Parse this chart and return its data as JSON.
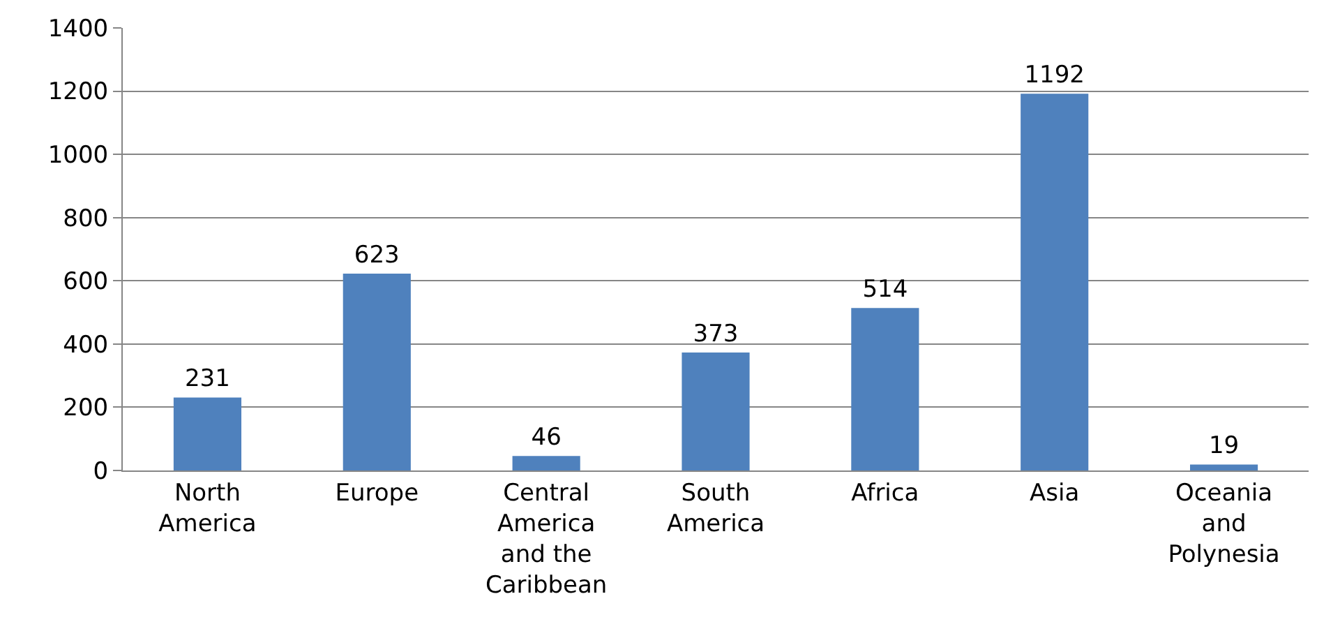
{
  "chart_data": {
    "type": "bar",
    "categories": [
      "North America",
      "Europe",
      "Central America and the Caribbean",
      "South America",
      "Africa",
      "Asia",
      "Oceania and Polynesia"
    ],
    "values": [
      231,
      623,
      46,
      373,
      514,
      1192,
      19
    ],
    "color": "#4f81bd",
    "ylim": [
      0,
      1400
    ],
    "yticks": [
      0,
      200,
      400,
      600,
      800,
      1000,
      1200,
      1400
    ],
    "grid": "y",
    "data_labels": true,
    "legend": false
  }
}
